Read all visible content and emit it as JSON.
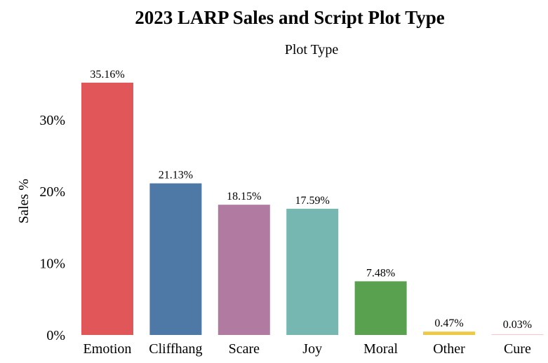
{
  "chart_data": {
    "type": "bar",
    "title": "2023 LARP Sales and Script Plot Type",
    "header": "Plot Type",
    "xlabel": "",
    "ylabel": "Sales %",
    "categories": [
      "Emotion",
      "Cliffhang",
      "Scare",
      "Joy",
      "Moral",
      "Other",
      "Cure"
    ],
    "values": [
      35.16,
      21.13,
      18.15,
      17.59,
      7.48,
      0.47,
      0.03
    ],
    "value_labels": [
      "35.16%",
      "21.13%",
      "18.15%",
      "17.59%",
      "7.48%",
      "0.47%",
      "0.03%"
    ],
    "colors": [
      "#e15759",
      "#4e79a7",
      "#b07aa1",
      "#76b7b2",
      "#59a14f",
      "#edc948",
      "#ff9da7"
    ],
    "yticks": [
      0,
      10,
      20,
      30
    ],
    "ytick_labels": [
      "0%",
      "10%",
      "20%",
      "30%"
    ],
    "ylim": [
      0,
      36
    ],
    "grid": false,
    "legend": "none"
  }
}
